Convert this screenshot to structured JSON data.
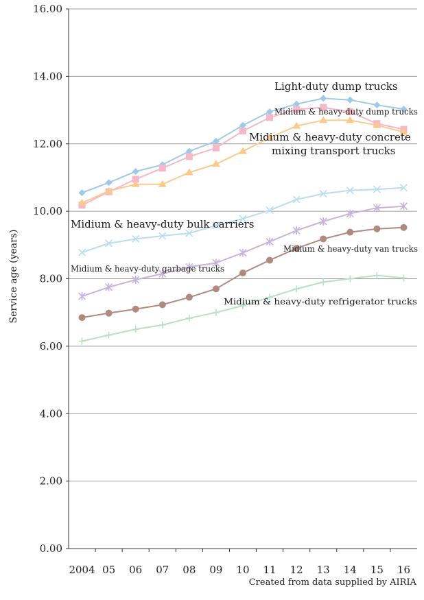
{
  "chart_data": {
    "type": "line",
    "ylabel": "Service age (years)",
    "ylim": [
      0,
      16
    ],
    "y_ticks": [
      "0.00",
      "2.00",
      "4.00",
      "6.00",
      "8.00",
      "10.00",
      "12.00",
      "14.00",
      "16.00"
    ],
    "categories": [
      "2004",
      "05",
      "06",
      "07",
      "08",
      "09",
      "10",
      "11",
      "12",
      "13",
      "14",
      "15",
      "16"
    ],
    "grid": "horizontal",
    "source": "Created from data supplied by AIRIA",
    "series": [
      {
        "name": "Light-duty dump trucks",
        "color": "#9ecae8",
        "marker": "diamond",
        "values": [
          10.55,
          10.85,
          11.18,
          11.38,
          11.78,
          12.08,
          12.55,
          12.95,
          13.18,
          13.35,
          13.3,
          13.15,
          13.03
        ]
      },
      {
        "name": "Midium & heavy-duty dump trucks",
        "color": "#f4b8c8",
        "marker": "square",
        "values": [
          10.18,
          10.58,
          10.95,
          11.28,
          11.62,
          11.88,
          12.38,
          12.78,
          13.02,
          13.08,
          12.95,
          12.6,
          12.43
        ]
      },
      {
        "name": "Midium & heavy-duty concrete mixing transport trucks",
        "color": "#fbc98a",
        "marker": "triangle",
        "values": [
          10.25,
          10.6,
          10.8,
          10.8,
          11.15,
          11.4,
          11.78,
          12.18,
          12.53,
          12.7,
          12.7,
          12.55,
          12.35
        ]
      },
      {
        "name": "Midium & heavy-duty bulk carriers",
        "color": "#b9ddef",
        "marker": "x",
        "values": [
          8.78,
          9.05,
          9.18,
          9.27,
          9.35,
          9.58,
          9.78,
          10.03,
          10.35,
          10.52,
          10.62,
          10.65,
          10.7
        ]
      },
      {
        "name": "Midium & heavy-duty garbage trucks",
        "color": "#c8b3da",
        "marker": "asterisk",
        "values": [
          7.48,
          7.75,
          7.97,
          8.15,
          8.35,
          8.47,
          8.77,
          9.1,
          9.43,
          9.7,
          9.93,
          10.1,
          10.15
        ]
      },
      {
        "name": "Midium & heavy-duty van trucks",
        "color": "#b08a7e",
        "marker": "circle",
        "values": [
          6.85,
          6.98,
          7.1,
          7.23,
          7.45,
          7.7,
          8.17,
          8.55,
          8.9,
          9.18,
          9.38,
          9.48,
          9.52
        ]
      },
      {
        "name": "Midium & heavy-duty refrigerator trucks",
        "color": "#b9e0c4",
        "marker": "plus",
        "values": [
          6.15,
          6.33,
          6.5,
          6.63,
          6.83,
          7.0,
          7.2,
          7.45,
          7.7,
          7.9,
          8.0,
          8.1,
          8.02
        ]
      }
    ]
  },
  "labels": {
    "light_dump": "Light-duty dump trucks",
    "mh_dump": "Midium & heavy-duty dump trucks",
    "concrete_1": "Midium & heavy-duty concrete",
    "concrete_2": "mixing transport trucks",
    "bulk": "Midium & heavy-duty bulk carriers",
    "van": "Midium & heavy-duty van trucks",
    "garbage": "Midium & heavy-duty garbage trucks",
    "refrigerator": "Midium & heavy-duty refrigerator trucks"
  }
}
